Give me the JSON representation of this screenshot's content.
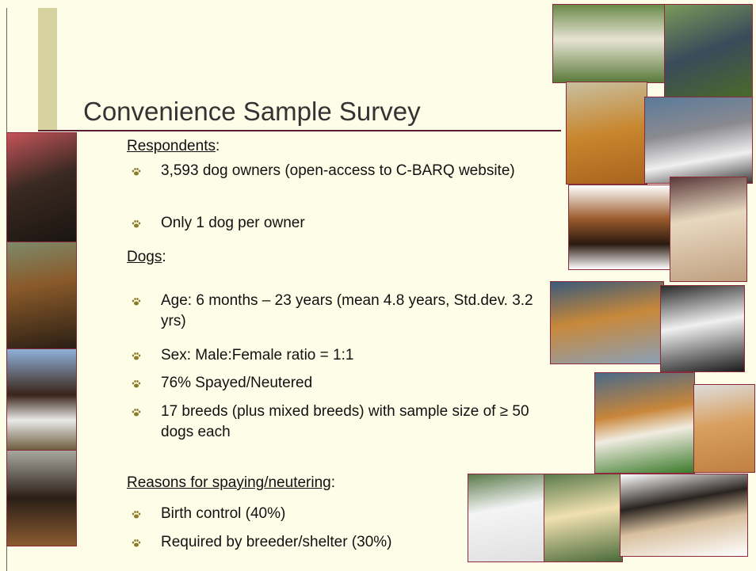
{
  "slide": {
    "title": "Convenience Sample Survey",
    "sections": [
      {
        "heading": "Respondents",
        "suffix": ":",
        "items": [
          "3,593 dog owners (open-access to C-BARQ website)",
          "Only 1 dog per owner"
        ]
      },
      {
        "heading": "Dogs",
        "suffix": ":",
        "items": [
          "Age: 6 months – 23 years (mean 4.8 years, Std.dev. 3.2 yrs)",
          "Sex: Male:Female ratio = 1:1",
          "76% Spayed/Neutered",
          "17 breeds (plus mixed breeds) with sample size of ≥ 50 dogs each"
        ]
      },
      {
        "heading": "Reasons for spaying/neutering",
        "suffix": ":",
        "items": [
          "Birth control (40%)",
          "Required by breeder/shelter (30%)"
        ]
      }
    ]
  }
}
